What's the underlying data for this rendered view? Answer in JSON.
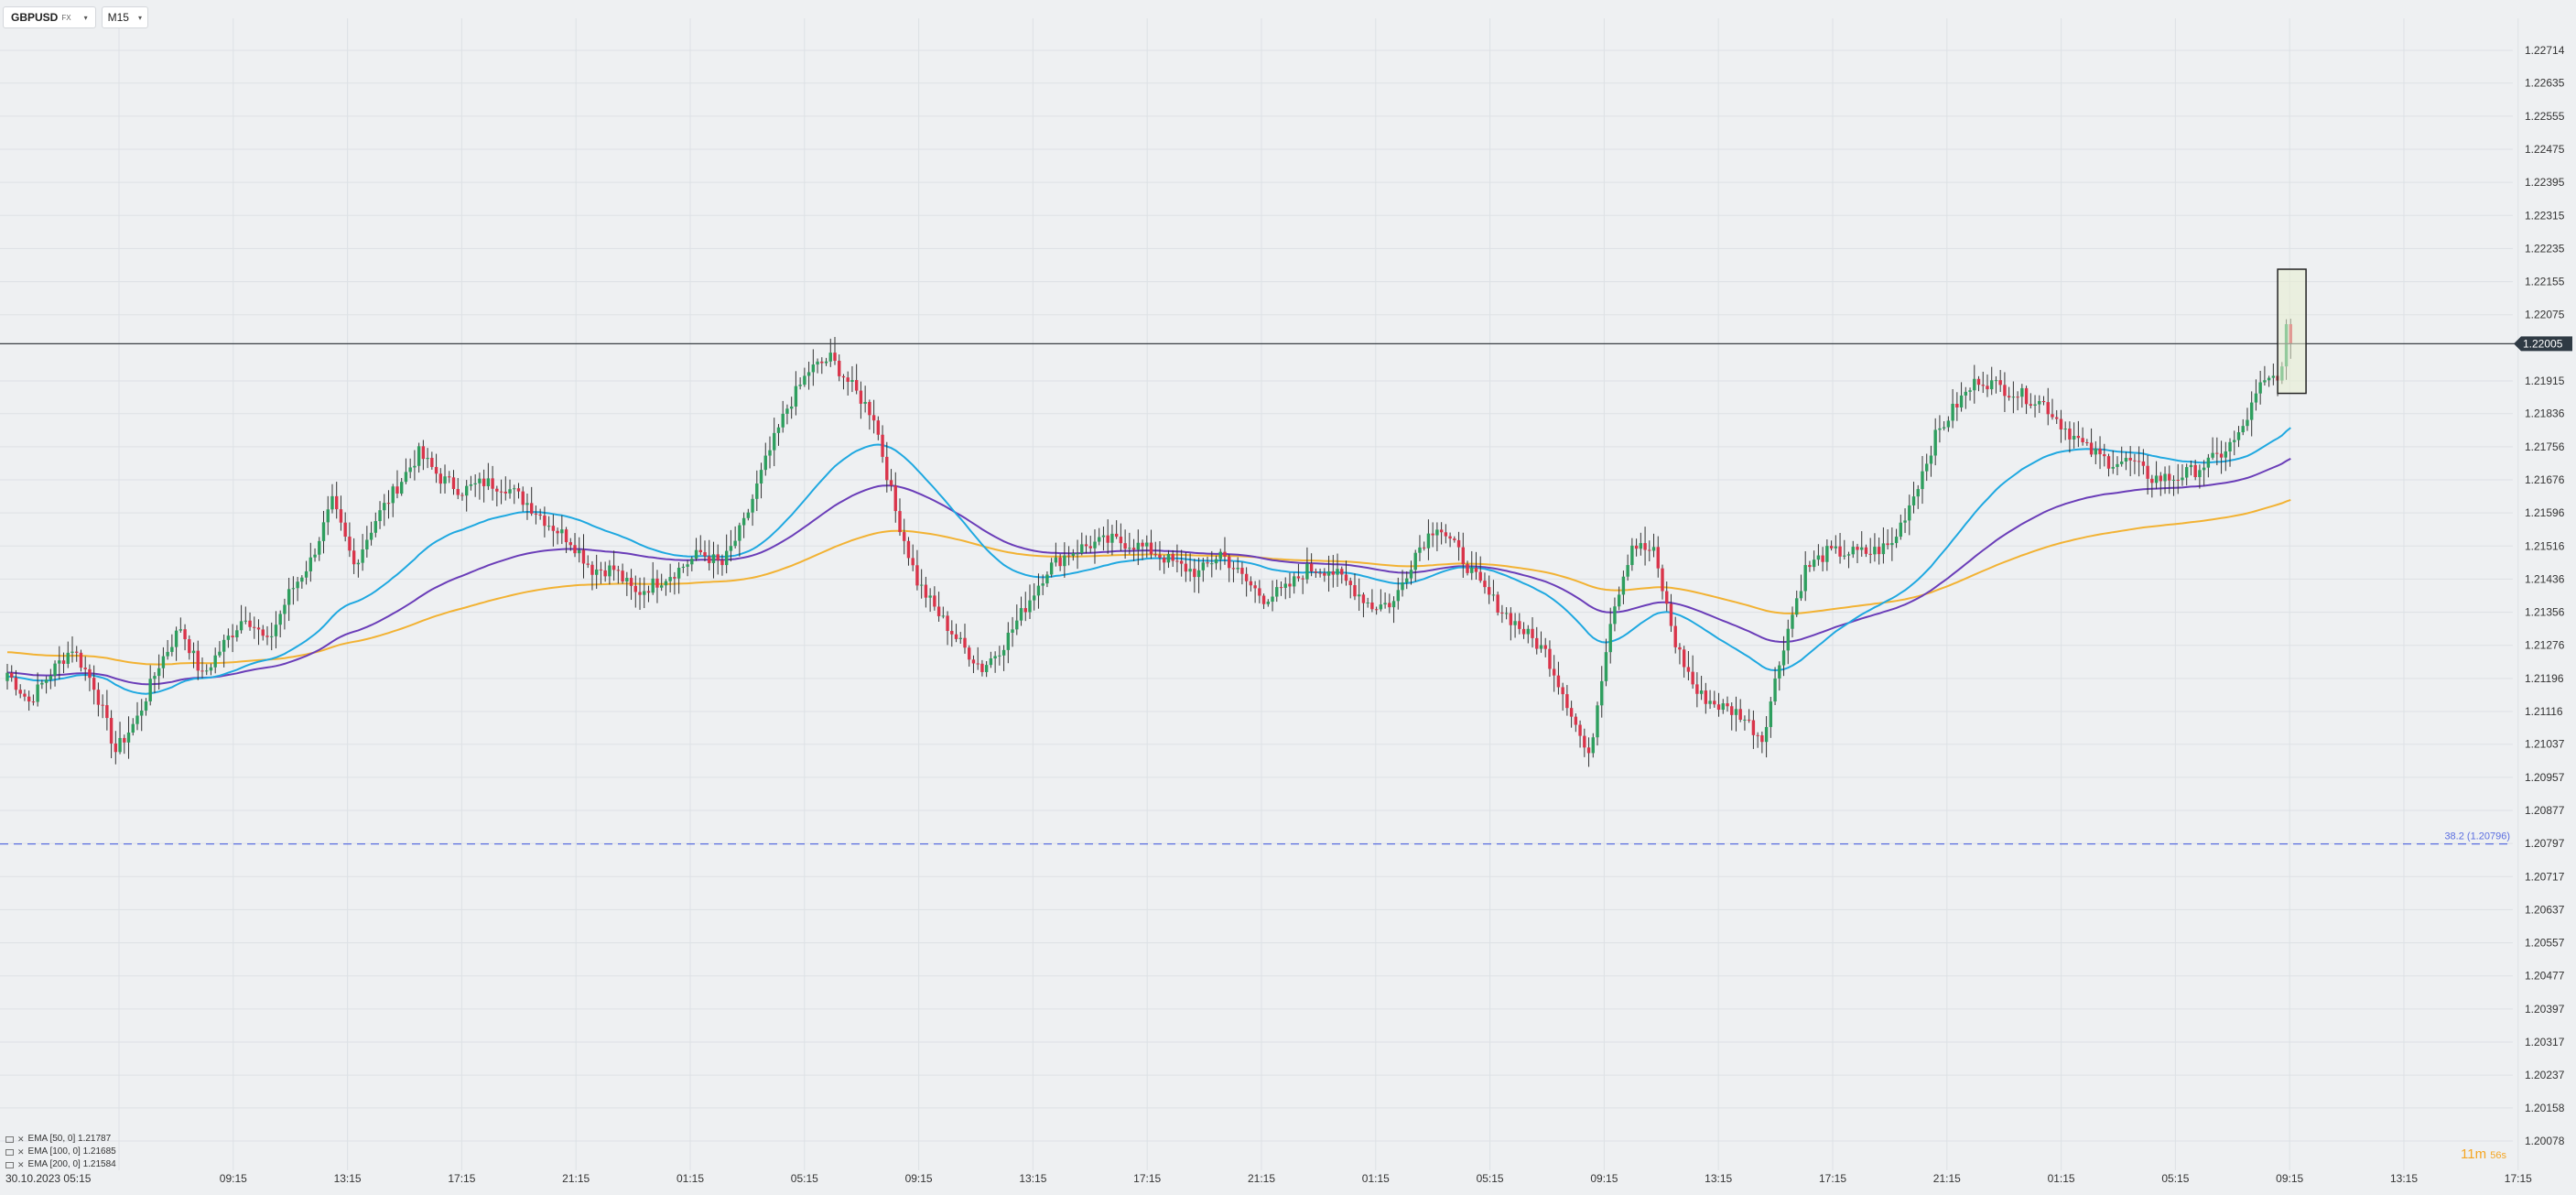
{
  "toolbar": {
    "symbol": "GBPUSD",
    "symbol_sub": "FX",
    "timeframe": "M15"
  },
  "timer": {
    "minutes": "11m",
    "seconds": "56s"
  },
  "colors": {
    "up": "#2e9e5e",
    "down": "#d9344a",
    "ema50": "#1fa8e0",
    "ema100": "#6a3db8",
    "ema200": "#f2b233",
    "grid": "#dde1e5",
    "price_line": "#3a3f44",
    "fib_line": "#5b6ee0",
    "highlight_fill": "#e7efcf",
    "background": "#eef0f2"
  },
  "chart_data": {
    "type": "candlestick",
    "symbol": "GBPUSD",
    "timeframe": "M15",
    "y_range": [
      1.20078,
      1.22714
    ],
    "y_ticks": [
      "1.22714",
      "1.22635",
      "1.22555",
      "1.22475",
      "1.22395",
      "1.22315",
      "1.22235",
      "1.22155",
      "1.22075",
      "1.21915",
      "1.21836",
      "1.21756",
      "1.21676",
      "1.21596",
      "1.21516",
      "1.21436",
      "1.21356",
      "1.21276",
      "1.21196",
      "1.21116",
      "1.21037",
      "1.20957",
      "1.20877",
      "1.20797",
      "1.20717",
      "1.20637",
      "1.20557",
      "1.20477",
      "1.20397",
      "1.20317",
      "1.20237",
      "1.20158",
      "1.20078"
    ],
    "current_price": {
      "label": "1.22005",
      "value": 1.22005
    },
    "fib_level": {
      "label": "38.2 (1.20796)",
      "value": 1.20796
    },
    "x_labels": [
      "30.10.2023  05:15",
      "09:15",
      "13:15",
      "17:15",
      "21:15",
      "01:15",
      "05:15",
      "09:15",
      "13:15",
      "17:15",
      "21:15",
      "01:15",
      "05:15",
      "09:15",
      "13:15",
      "17:15",
      "21:15",
      "01:15",
      "05:15",
      "09:15",
      "13:15",
      "17:15"
    ],
    "indicators": [
      {
        "label": "EMA [50, 0] 1.21787",
        "value": 1.21787,
        "color": "#1fa8e0"
      },
      {
        "label": "EMA [100, 0] 1.21685",
        "value": 1.21685,
        "color": "#6a3db8"
      },
      {
        "label": "EMA [200, 0] 1.21584",
        "value": 1.21584,
        "color": "#f2b233"
      }
    ],
    "price_anchors": [
      [
        0,
        1.2121
      ],
      [
        5,
        1.2114
      ],
      [
        10,
        1.2121
      ],
      [
        15,
        1.2127
      ],
      [
        20,
        1.2118
      ],
      [
        25,
        1.2102
      ],
      [
        30,
        1.211
      ],
      [
        35,
        1.2123
      ],
      [
        40,
        1.2132
      ],
      [
        45,
        1.212
      ],
      [
        50,
        1.2128
      ],
      [
        55,
        1.2135
      ],
      [
        60,
        1.2128
      ],
      [
        65,
        1.214
      ],
      [
        70,
        1.2148
      ],
      [
        75,
        1.2162
      ],
      [
        80,
        1.2147
      ],
      [
        85,
        1.2158
      ],
      [
        90,
        1.2166
      ],
      [
        95,
        1.2174
      ],
      [
        100,
        1.2168
      ],
      [
        105,
        1.2165
      ],
      [
        110,
        1.2167
      ],
      [
        115,
        1.2166
      ],
      [
        120,
        1.2162
      ],
      [
        125,
        1.2157
      ],
      [
        130,
        1.2153
      ],
      [
        135,
        1.2146
      ],
      [
        140,
        1.2146
      ],
      [
        145,
        1.214
      ],
      [
        150,
        1.2143
      ],
      [
        155,
        1.2146
      ],
      [
        160,
        1.215
      ],
      [
        165,
        1.2147
      ],
      [
        170,
        1.2157
      ],
      [
        175,
        1.2172
      ],
      [
        180,
        1.2185
      ],
      [
        185,
        1.2194
      ],
      [
        190,
        1.2197
      ],
      [
        195,
        1.219
      ],
      [
        200,
        1.2183
      ],
      [
        205,
        1.216
      ],
      [
        210,
        1.2143
      ],
      [
        215,
        1.2135
      ],
      [
        220,
        1.2128
      ],
      [
        225,
        1.2122
      ],
      [
        230,
        1.2128
      ],
      [
        235,
        1.2137
      ],
      [
        240,
        1.2146
      ],
      [
        245,
        1.215
      ],
      [
        250,
        1.2152
      ],
      [
        255,
        1.2153
      ],
      [
        260,
        1.2152
      ],
      [
        265,
        1.215
      ],
      [
        270,
        1.2147
      ],
      [
        275,
        1.2145
      ],
      [
        280,
        1.215
      ],
      [
        285,
        1.2144
      ],
      [
        290,
        1.2139
      ],
      [
        295,
        1.2141
      ],
      [
        300,
        1.2146
      ],
      [
        305,
        1.2146
      ],
      [
        310,
        1.2142
      ],
      [
        315,
        1.2137
      ],
      [
        320,
        1.2138
      ],
      [
        325,
        1.215
      ],
      [
        330,
        1.2157
      ],
      [
        335,
        1.215
      ],
      [
        340,
        1.2142
      ],
      [
        345,
        1.2136
      ],
      [
        350,
        1.2131
      ],
      [
        355,
        1.2126
      ],
      [
        360,
        1.2114
      ],
      [
        365,
        1.21
      ],
      [
        370,
        1.2134
      ],
      [
        375,
        1.2152
      ],
      [
        380,
        1.215
      ],
      [
        385,
        1.2128
      ],
      [
        390,
        1.2116
      ],
      [
        395,
        1.2113
      ],
      [
        400,
        1.2111
      ],
      [
        405,
        1.2105
      ],
      [
        410,
        1.2128
      ],
      [
        415,
        1.2146
      ],
      [
        420,
        1.215
      ],
      [
        425,
        1.215
      ],
      [
        430,
        1.215
      ],
      [
        435,
        1.2152
      ],
      [
        440,
        1.2164
      ],
      [
        445,
        1.2178
      ],
      [
        450,
        1.2186
      ],
      [
        455,
        1.2192
      ],
      [
        460,
        1.219
      ],
      [
        465,
        1.2188
      ],
      [
        470,
        1.2186
      ],
      [
        475,
        1.218
      ],
      [
        480,
        1.2175
      ],
      [
        485,
        1.2172
      ],
      [
        490,
        1.2172
      ],
      [
        495,
        1.2168
      ],
      [
        500,
        1.2168
      ],
      [
        505,
        1.217
      ],
      [
        510,
        1.2173
      ],
      [
        515,
        1.2178
      ],
      [
        520,
        1.219
      ],
      [
        525,
        1.2194
      ],
      [
        527,
        1.2213
      ]
    ]
  }
}
